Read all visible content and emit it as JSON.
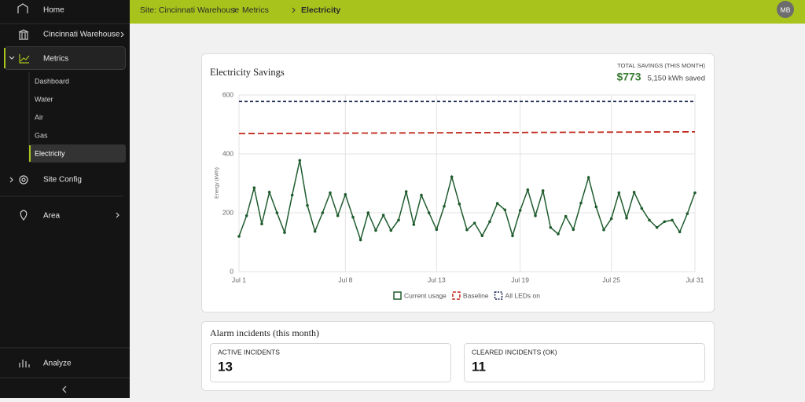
{
  "nav": {
    "home": "Home",
    "site": "Cincinnati Warehouse",
    "metrics": "Metrics",
    "sub": [
      "Dashboard",
      "Water",
      "Air",
      "Gas",
      "Electricity"
    ],
    "site_config": "Site Config",
    "area": "Area",
    "analyze": "Analyze"
  },
  "breadcrumb": [
    "Site: Cincinnati Warehouse",
    "Metrics",
    "Electricity"
  ],
  "avatar": "MB",
  "savings_card": {
    "title": "Electricity Savings",
    "total_label": "TOTAL SAVINGS (THIS MONTH)",
    "total_value": "$773",
    "kwh_saved": "5,150 kWh saved"
  },
  "chart_data": {
    "type": "line",
    "y_label": "Energy (kWh)",
    "categories": [
      "Jul 1",
      null,
      null,
      null,
      null,
      null,
      null,
      null,
      null,
      null,
      null,
      null,
      null,
      null,
      "Jul 8",
      null,
      null,
      null,
      null,
      null,
      null,
      null,
      null,
      null,
      null,
      null,
      "Jul 13",
      null,
      null,
      null,
      null,
      null,
      null,
      null,
      null,
      null,
      null,
      "Jul 19",
      null,
      null,
      null,
      null,
      null,
      null,
      null,
      null,
      null,
      null,
      null,
      "Jul 25",
      null,
      null,
      null,
      null,
      null,
      null,
      null,
      null,
      null,
      null,
      "Jul 31"
    ],
    "series": [
      {
        "name": "Current usage",
        "color": "#1f5c2e",
        "dash": false,
        "markers": true,
        "values": [
          120,
          190,
          285,
          162,
          270,
          200,
          133,
          260,
          378,
          225,
          137,
          200,
          268,
          190,
          262,
          185,
          108,
          200,
          140,
          192,
          140,
          175,
          272,
          160,
          260,
          200,
          143,
          222,
          322,
          230,
          142,
          165,
          122,
          170,
          232,
          210,
          122,
          208,
          278,
          190,
          275,
          150,
          128,
          188,
          143,
          233,
          320,
          220,
          142,
          180,
          268,
          182,
          270,
          215,
          175,
          150,
          170,
          175,
          135,
          197,
          268
        ]
      },
      {
        "name": "Baseline",
        "color": "#c0281c",
        "dash": true,
        "markers": false,
        "values": [
          469.0,
          469.1,
          469.2,
          469.3,
          469.4,
          469.5,
          469.6,
          469.7,
          469.8,
          469.9,
          470.0,
          470.1,
          470.2,
          470.3,
          470.4,
          470.5,
          470.6,
          470.7,
          470.8,
          470.9,
          471.0,
          471.1,
          471.2,
          471.3,
          471.4,
          471.5,
          471.6,
          471.7,
          471.8,
          471.9,
          472.0,
          472.1,
          472.2,
          472.3,
          472.4,
          472.5,
          472.6,
          472.7,
          472.8,
          472.9,
          473.0,
          473.1,
          473.2,
          473.3,
          473.4,
          473.5,
          473.6,
          473.7,
          473.8,
          473.9,
          474.0,
          474.1,
          474.2,
          474.3,
          474.4,
          474.5,
          474.6,
          474.7,
          474.8,
          474.9,
          475.0
        ]
      },
      {
        "name": "All LEDs on",
        "color": "#1a2550",
        "dash": true,
        "markers": false,
        "values": [
          578,
          578,
          578,
          578,
          578,
          578,
          578,
          578,
          578,
          578,
          578,
          578,
          578,
          578,
          578,
          578,
          578,
          578,
          578,
          578,
          578,
          578,
          578,
          578,
          578,
          578,
          578,
          578,
          578,
          578,
          578,
          578,
          578,
          578,
          578,
          578,
          578,
          578,
          578,
          578,
          578,
          578,
          578,
          578,
          578,
          578,
          578,
          578,
          578,
          578,
          578,
          578,
          578,
          578,
          578,
          578,
          578,
          578,
          578,
          578,
          578
        ]
      }
    ],
    "ylim": [
      0,
      600
    ],
    "yticks": [
      0,
      200,
      400,
      600
    ],
    "grid": true,
    "legend": "bottom"
  },
  "alarms": {
    "title": "Alarm incidents (this month)",
    "active_label": "ACTIVE INCIDENTS",
    "active_count": 13,
    "cleared_label": "CLEARED INCIDENTS (OK)",
    "cleared_count": 11
  }
}
